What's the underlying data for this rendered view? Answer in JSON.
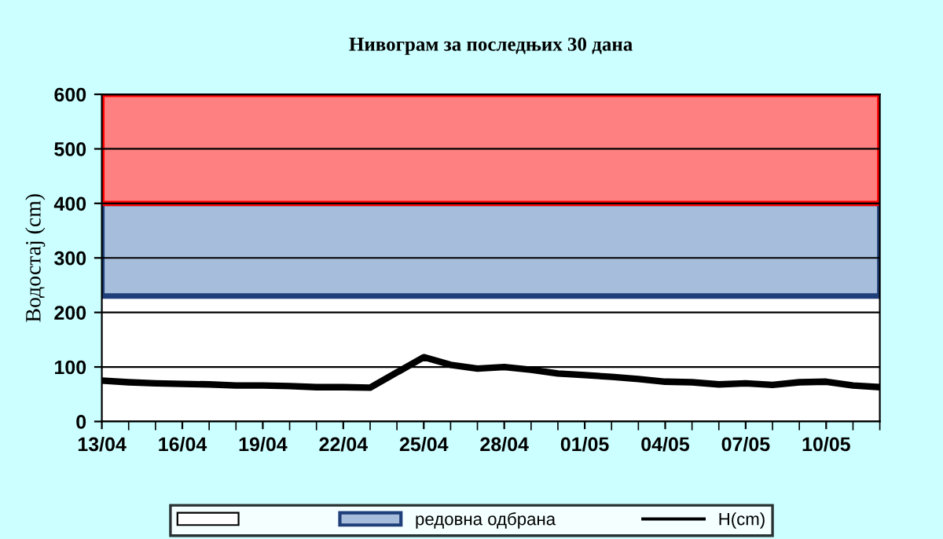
{
  "chart_data": {
    "type": "line",
    "title": "Нивограм за последњих 30 дана",
    "ylabel": "Водостај (cm)",
    "categories": [
      "13/04",
      null,
      null,
      "16/04",
      null,
      null,
      "19/04",
      null,
      null,
      "22/04",
      null,
      null,
      "25/04",
      null,
      null,
      "28/04",
      null,
      null,
      "01/05",
      null,
      null,
      "04/05",
      null,
      null,
      "07/05",
      null,
      null,
      "10/05",
      null,
      null
    ],
    "series": [
      {
        "name": "H(cm)",
        "color": "#000000",
        "values": [
          75,
          72,
          70,
          69,
          68,
          66,
          66,
          65,
          63,
          63,
          62,
          90,
          118,
          104,
          97,
          100,
          95,
          88,
          85,
          82,
          78,
          73,
          72,
          68,
          70,
          67,
          72,
          73,
          66,
          63
        ]
      }
    ],
    "ylim": [
      0,
      600
    ],
    "yticks": [
      0,
      100,
      200,
      300,
      400,
      500,
      600
    ],
    "bands": [
      {
        "axis": "y",
        "from": 0,
        "to": 230,
        "color": "#ffffff"
      },
      {
        "axis": "y",
        "from": 230,
        "to": 400,
        "label": "редовна одбрана",
        "color": "#a6bddb"
      },
      {
        "axis": "y",
        "from": 400,
        "to": 600,
        "color": "#ff8080"
      }
    ],
    "grid": "y",
    "legend": "bottom",
    "marker": "none",
    "line_style": "solid"
  }
}
